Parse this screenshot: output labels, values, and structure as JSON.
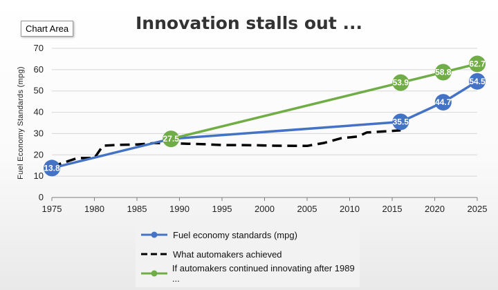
{
  "tooltip": "Chart Area",
  "chart_data": {
    "type": "line",
    "title": "Innovation stalls out ...",
    "ylabel": "Fuel Economy Standards (mpg)",
    "xlabel": "",
    "xlim": [
      1975,
      2025
    ],
    "ylim": [
      0,
      70
    ],
    "xticks": [
      1975,
      1980,
      1985,
      1990,
      1995,
      2000,
      2005,
      2010,
      2015,
      2020,
      2025
    ],
    "yticks": [
      0,
      10,
      20,
      30,
      40,
      50,
      60,
      70
    ],
    "grid": true,
    "legend_position": "bottom",
    "series": [
      {
        "name": "Fuel economy standards (mpg)",
        "style": "solid-marker",
        "color": "#4472c4",
        "x": [
          1975,
          1989,
          2016,
          2021,
          2025
        ],
        "y": [
          13.8,
          27.5,
          35.5,
          44.7,
          54.5
        ],
        "labels": [
          "13.8",
          "",
          "35.5",
          "44.7",
          "54.5"
        ]
      },
      {
        "name": "What automakers achieved",
        "style": "dashed",
        "color": "#000000",
        "x": [
          1975,
          1978,
          1980,
          1981,
          1983,
          1985,
          1987,
          1989,
          1991,
          1993,
          1995,
          1997,
          1999,
          2001,
          2004,
          2005,
          2007,
          2009,
          2011,
          2012,
          2016
        ],
        "y": [
          14.5,
          18.5,
          18.5,
          24.3,
          24.7,
          24.9,
          25.5,
          25.5,
          25.2,
          25.0,
          24.6,
          24.6,
          24.5,
          24.3,
          24.2,
          24.2,
          25.6,
          27.8,
          28.6,
          30.5,
          31.5
        ]
      },
      {
        "name": "If automakers continued innovating after 1989 ...",
        "style": "solid-marker",
        "color": "#70ad47",
        "x": [
          1989,
          2016,
          2021,
          2025
        ],
        "y": [
          27.5,
          53.9,
          58.8,
          62.7
        ],
        "labels": [
          "27.5",
          "53.9",
          "58.8",
          "62.7"
        ]
      }
    ]
  }
}
